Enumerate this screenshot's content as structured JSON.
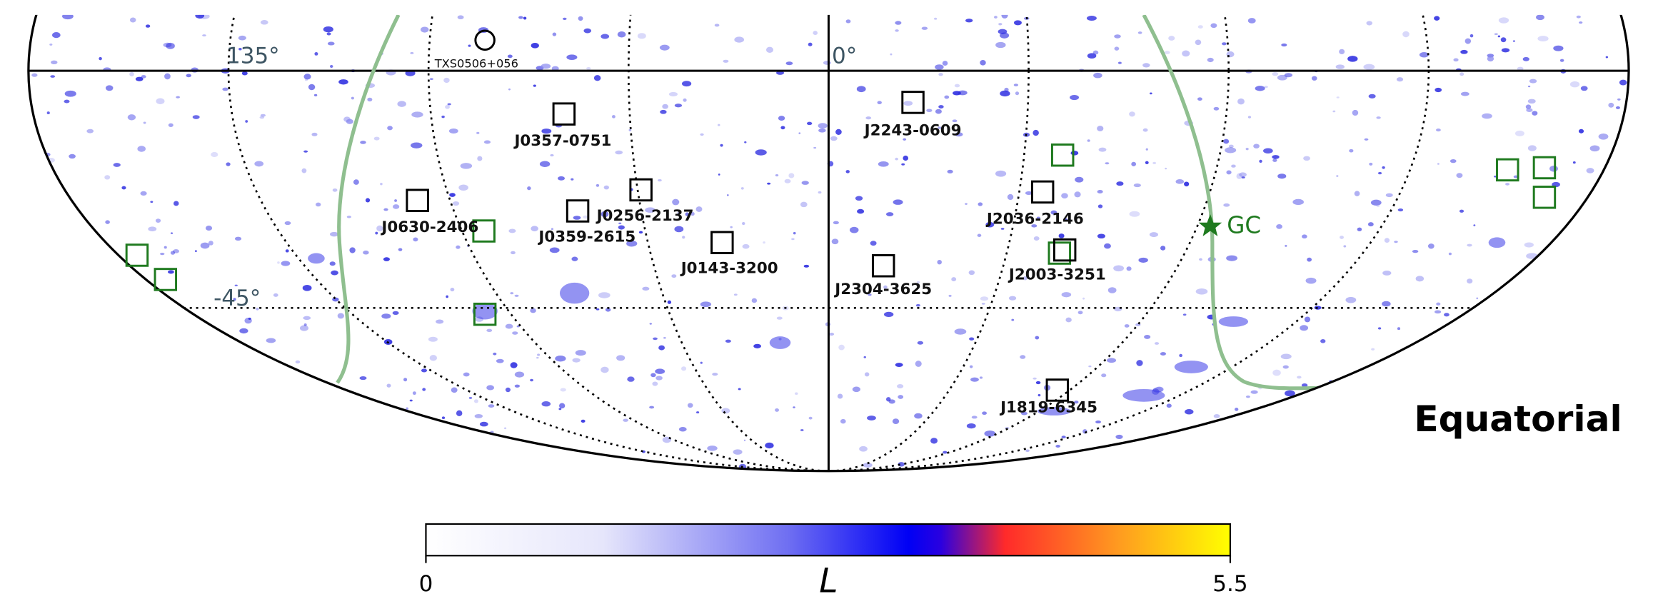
{
  "map": {
    "title": "Equatorial",
    "grid_labels": [
      "135°",
      "0°",
      "-45°"
    ],
    "sources": [
      "J0357-0751",
      "J2243-0609",
      "J0630-2406",
      "J0256-2137",
      "J0359-2615",
      "J0143-3200",
      "J2036-2146",
      "J2304-3625",
      "J2003-3251",
      "J1819-6345"
    ],
    "reference_source": "TXS0506+056",
    "galactic_center": "GC"
  },
  "colorbar": {
    "label": "L",
    "lim": [
      0,
      5.5
    ],
    "ticks": [
      0,
      5.5
    ]
  }
}
